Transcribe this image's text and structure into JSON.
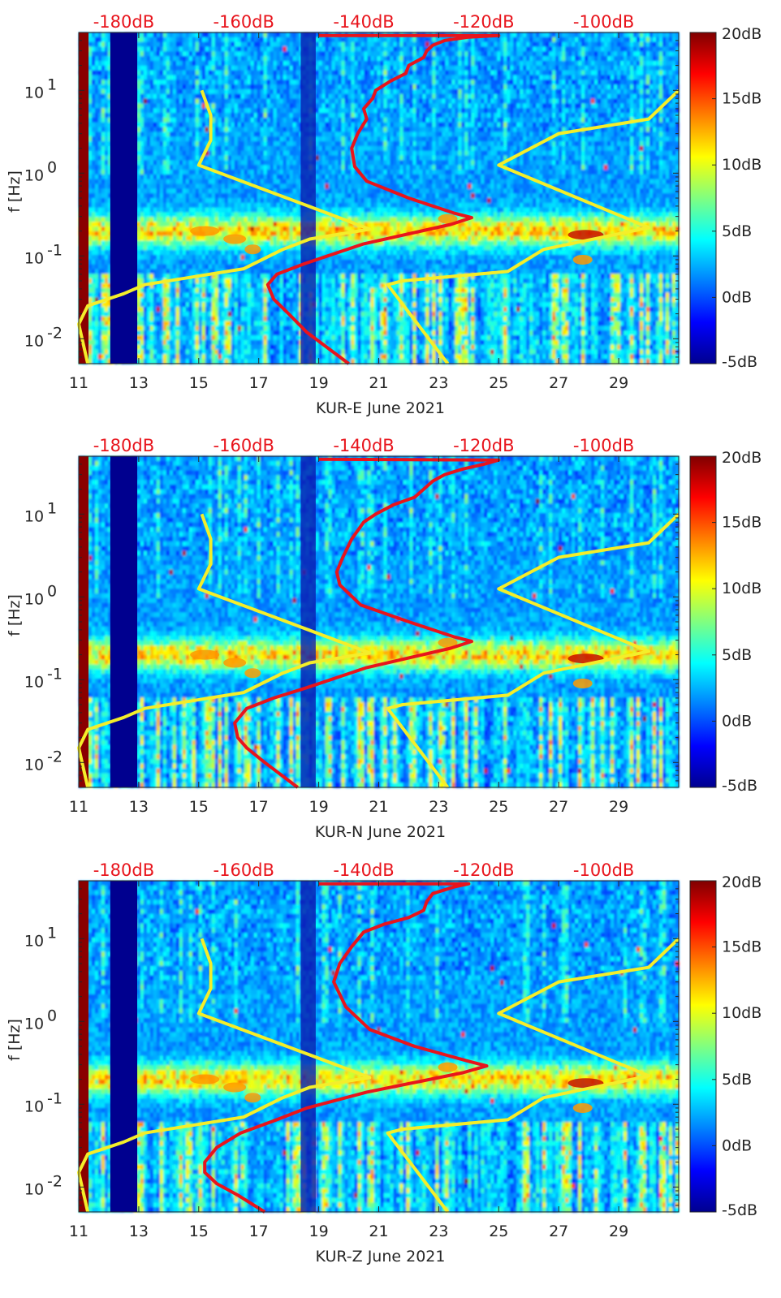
{
  "chart_data": [
    {
      "type": "heatmap",
      "xlabel": "KUR-E June 2021",
      "ylabel": "f [Hz]",
      "x_ticks": [
        "11",
        "13",
        "15",
        "17",
        "19",
        "21",
        "23",
        "25",
        "27",
        "29"
      ],
      "xlim": [
        11,
        31
      ],
      "ylim": [
        0.005,
        50
      ],
      "y_ticks": [
        {
          "base": "10",
          "exp": "-2",
          "value": 0.01
        },
        {
          "base": "10",
          "exp": "-1",
          "value": 0.1
        },
        {
          "base": "10",
          "exp": "0",
          "value": 1
        },
        {
          "base": "10",
          "exp": "1",
          "value": 10
        }
      ],
      "top_axis_labels": [
        "-180dB",
        "-160dB",
        "-140dB",
        "-120dB",
        "-100dB"
      ],
      "top_axis_positions": [
        12.5,
        16.5,
        20.5,
        24.5,
        28.5
      ],
      "colorbar": {
        "labels": [
          "20dB",
          "15dB",
          "10dB",
          "5dB",
          "0dB",
          "-5dB"
        ],
        "range": [
          -5,
          20
        ]
      },
      "red_curve": [
        [
          20,
          0.005
        ],
        [
          18.6,
          0.012
        ],
        [
          18,
          0.02
        ],
        [
          17.5,
          0.03
        ],
        [
          17.3,
          0.045
        ],
        [
          17.6,
          0.06
        ],
        [
          18.5,
          0.08
        ],
        [
          20.5,
          0.14
        ],
        [
          23.4,
          0.24
        ],
        [
          24.1,
          0.29
        ],
        [
          23.5,
          0.33
        ],
        [
          22,
          0.5
        ],
        [
          20.6,
          0.8
        ],
        [
          20.2,
          1.2
        ],
        [
          20.1,
          2
        ],
        [
          20.3,
          3
        ],
        [
          20.6,
          4.5
        ],
        [
          20.5,
          6
        ],
        [
          20.8,
          8
        ],
        [
          20.9,
          10
        ],
        [
          21.4,
          13
        ],
        [
          21.9,
          16
        ],
        [
          22,
          20
        ],
        [
          22.5,
          25
        ],
        [
          22.6,
          30
        ],
        [
          22.8,
          35
        ],
        [
          23.2,
          40
        ],
        [
          24,
          44
        ],
        [
          25,
          46
        ],
        [
          19,
          46
        ]
      ],
      "yellow_curves": [
        [
          [
            11.3,
            0.005
          ],
          [
            11,
            0.015
          ],
          [
            11.3,
            0.025
          ],
          [
            12.5,
            0.035
          ],
          [
            13.2,
            0.045
          ],
          [
            16.5,
            0.07
          ],
          [
            17.8,
            0.12
          ],
          [
            18.7,
            0.16
          ],
          [
            20.7,
            0.21
          ],
          [
            18.5,
            0.42
          ],
          [
            15,
            1.25
          ],
          [
            15.4,
            2.5
          ],
          [
            15.4,
            5
          ],
          [
            15.1,
            10
          ]
        ],
        [
          [
            23.3,
            0.005
          ],
          [
            21.3,
            0.045
          ],
          [
            21.8,
            0.05
          ],
          [
            25.3,
            0.065
          ],
          [
            26.5,
            0.12
          ],
          [
            30,
            0.22
          ],
          [
            25,
            1.25
          ],
          [
            27,
            3
          ],
          [
            30,
            4.5
          ],
          [
            31,
            10
          ]
        ]
      ]
    },
    {
      "type": "heatmap",
      "xlabel": "KUR-N June 2021",
      "ylabel": "f [Hz]",
      "x_ticks": [
        "11",
        "13",
        "15",
        "17",
        "19",
        "21",
        "23",
        "25",
        "27",
        "29"
      ],
      "xlim": [
        11,
        31
      ],
      "ylim": [
        0.005,
        50
      ],
      "y_ticks": [
        {
          "base": "10",
          "exp": "-2",
          "value": 0.01
        },
        {
          "base": "10",
          "exp": "-1",
          "value": 0.1
        },
        {
          "base": "10",
          "exp": "0",
          "value": 1
        },
        {
          "base": "10",
          "exp": "1",
          "value": 10
        }
      ],
      "top_axis_labels": [
        "-180dB",
        "-160dB",
        "-140dB",
        "-120dB",
        "-100dB"
      ],
      "top_axis_positions": [
        12.5,
        16.5,
        20.5,
        24.5,
        28.5
      ],
      "colorbar": {
        "labels": [
          "20dB",
          "15dB",
          "10dB",
          "5dB",
          "0dB",
          "-5dB"
        ],
        "range": [
          -5,
          20
        ]
      },
      "red_curve": [
        [
          18.3,
          0.005
        ],
        [
          17.2,
          0.01
        ],
        [
          16.6,
          0.015
        ],
        [
          16.3,
          0.02
        ],
        [
          16.2,
          0.03
        ],
        [
          16.6,
          0.045
        ],
        [
          17.5,
          0.06
        ],
        [
          18.6,
          0.08
        ],
        [
          20.6,
          0.14
        ],
        [
          23.4,
          0.24
        ],
        [
          24.1,
          0.29
        ],
        [
          23.5,
          0.33
        ],
        [
          22,
          0.5
        ],
        [
          20.4,
          0.8
        ],
        [
          19.7,
          1.4
        ],
        [
          19.6,
          2
        ],
        [
          19.8,
          3
        ],
        [
          20.1,
          5
        ],
        [
          20.5,
          8
        ],
        [
          20.9,
          10
        ],
        [
          21.5,
          13
        ],
        [
          22.2,
          16
        ],
        [
          22.5,
          20
        ],
        [
          22.8,
          25
        ],
        [
          23.2,
          30
        ],
        [
          23.8,
          35
        ],
        [
          24.5,
          40
        ],
        [
          25,
          45
        ],
        [
          19,
          46
        ]
      ],
      "yellow_curves": [
        [
          [
            11.3,
            0.005
          ],
          [
            11,
            0.015
          ],
          [
            11.3,
            0.025
          ],
          [
            12.5,
            0.035
          ],
          [
            13.2,
            0.045
          ],
          [
            16.5,
            0.07
          ],
          [
            17.8,
            0.12
          ],
          [
            18.7,
            0.16
          ],
          [
            20.7,
            0.21
          ],
          [
            18.5,
            0.42
          ],
          [
            15,
            1.25
          ],
          [
            15.4,
            2.5
          ],
          [
            15.4,
            5
          ],
          [
            15.1,
            10
          ]
        ],
        [
          [
            23.3,
            0.005
          ],
          [
            21.3,
            0.045
          ],
          [
            21.8,
            0.05
          ],
          [
            25.3,
            0.065
          ],
          [
            26.5,
            0.12
          ],
          [
            30,
            0.22
          ],
          [
            25,
            1.25
          ],
          [
            27,
            3
          ],
          [
            30,
            4.5
          ],
          [
            31,
            10
          ]
        ]
      ]
    },
    {
      "type": "heatmap",
      "xlabel": "KUR-Z June 2021",
      "ylabel": "f [Hz]",
      "x_ticks": [
        "11",
        "13",
        "15",
        "17",
        "19",
        "21",
        "23",
        "25",
        "27",
        "29"
      ],
      "xlim": [
        11,
        31
      ],
      "ylim": [
        0.005,
        50
      ],
      "y_ticks": [
        {
          "base": "10",
          "exp": "-2",
          "value": 0.01
        },
        {
          "base": "10",
          "exp": "-1",
          "value": 0.1
        },
        {
          "base": "10",
          "exp": "0",
          "value": 1
        },
        {
          "base": "10",
          "exp": "1",
          "value": 10
        }
      ],
      "top_axis_labels": [
        "-180dB",
        "-160dB",
        "-140dB",
        "-120dB",
        "-100dB"
      ],
      "top_axis_positions": [
        12.5,
        16.5,
        20.5,
        24.5,
        28.5
      ],
      "colorbar": {
        "labels": [
          "20dB",
          "15dB",
          "10dB",
          "5dB",
          "0dB",
          "-5dB"
        ],
        "range": [
          -5,
          20
        ]
      },
      "red_curve": [
        [
          17.2,
          0.005
        ],
        [
          16.3,
          0.008
        ],
        [
          15.6,
          0.011
        ],
        [
          15.2,
          0.015
        ],
        [
          15.2,
          0.02
        ],
        [
          15.6,
          0.03
        ],
        [
          16.4,
          0.045
        ],
        [
          17.6,
          0.065
        ],
        [
          18.6,
          0.09
        ],
        [
          20.6,
          0.14
        ],
        [
          23.8,
          0.24
        ],
        [
          24.6,
          0.29
        ],
        [
          24,
          0.33
        ],
        [
          22.2,
          0.5
        ],
        [
          20.7,
          0.8
        ],
        [
          19.9,
          1.5
        ],
        [
          19.5,
          3
        ],
        [
          19.7,
          5
        ],
        [
          20.1,
          8
        ],
        [
          20.5,
          12
        ],
        [
          21.2,
          15
        ],
        [
          22,
          18
        ],
        [
          22.5,
          22
        ],
        [
          22.6,
          28
        ],
        [
          22.8,
          35
        ],
        [
          23.5,
          42
        ],
        [
          24,
          46
        ],
        [
          19,
          46
        ]
      ],
      "yellow_curves": [
        [
          [
            11.3,
            0.005
          ],
          [
            11,
            0.015
          ],
          [
            11.3,
            0.025
          ],
          [
            12.5,
            0.035
          ],
          [
            13.2,
            0.045
          ],
          [
            16.5,
            0.07
          ],
          [
            17.8,
            0.12
          ],
          [
            18.7,
            0.16
          ],
          [
            20.7,
            0.21
          ],
          [
            18.5,
            0.42
          ],
          [
            15,
            1.25
          ],
          [
            15.4,
            2.5
          ],
          [
            15.4,
            5
          ],
          [
            15.1,
            10
          ]
        ],
        [
          [
            23.3,
            0.005
          ],
          [
            21.3,
            0.045
          ],
          [
            21.8,
            0.05
          ],
          [
            25.3,
            0.065
          ],
          [
            26.5,
            0.12
          ],
          [
            30,
            0.22
          ],
          [
            25,
            1.25
          ],
          [
            27,
            3
          ],
          [
            30,
            4.5
          ],
          [
            31,
            10
          ]
        ]
      ]
    }
  ]
}
